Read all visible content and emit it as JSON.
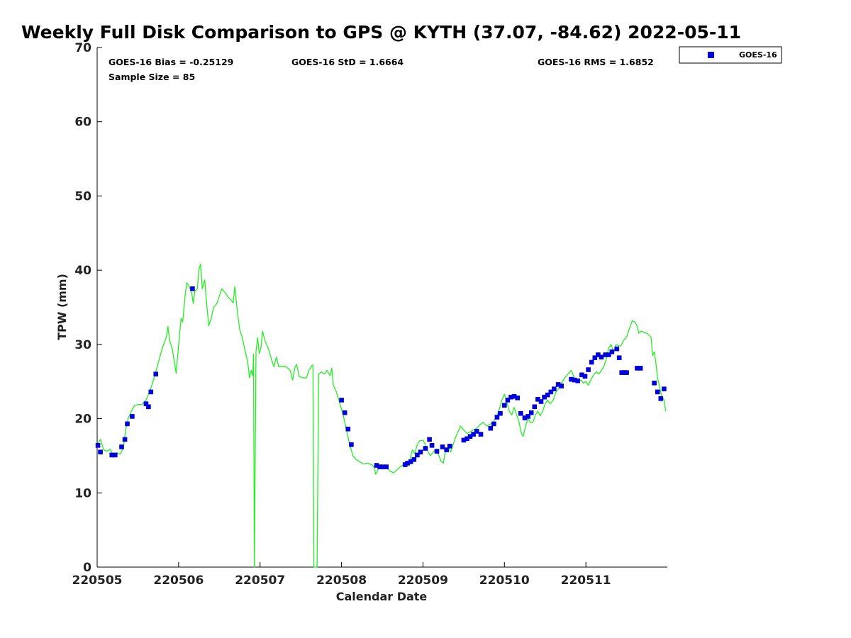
{
  "chart_data": {
    "type": "scatter",
    "title": "Weekly Full Disk Comparison to GPS @ KYTH (37.07, -84.62) 2022-05-11",
    "xlabel": "Calendar Date",
    "ylabel": "TPW (mm)",
    "x_ticks": [
      "220505",
      "220506",
      "220507",
      "220508",
      "220509",
      "220510",
      "220511"
    ],
    "y_ticks": [
      0,
      10,
      20,
      30,
      40,
      50,
      60,
      70
    ],
    "xlim_days": [
      0,
      7
    ],
    "ylim": [
      0,
      70
    ],
    "grid": false,
    "legend_position": "top-right",
    "stats": {
      "bias": "GOES-16 Bias = -0.25129",
      "std": "GOES-16 StD = 1.6664",
      "rms": "GOES-16 RMS = 1.6852",
      "sample_size": "Sample Size = 85"
    },
    "colors": {
      "goes": "#0000dd",
      "gps": "#22ee22"
    },
    "series": [
      {
        "name": "GOES-16",
        "kind": "markers",
        "color": "#0000dd",
        "points": [
          [
            0.01,
            16.4
          ],
          [
            0.04,
            15.5
          ],
          [
            0.18,
            15.1
          ],
          [
            0.22,
            15.1
          ],
          [
            0.3,
            16.2
          ],
          [
            0.34,
            17.2
          ],
          [
            0.37,
            19.3
          ],
          [
            0.43,
            20.3
          ],
          [
            0.6,
            22.0
          ],
          [
            0.63,
            21.6
          ],
          [
            0.66,
            23.6
          ],
          [
            0.72,
            26.0
          ],
          [
            1.17,
            37.5
          ],
          [
            3.0,
            22.5
          ],
          [
            3.04,
            20.8
          ],
          [
            3.08,
            18.6
          ],
          [
            3.12,
            16.5
          ],
          [
            3.43,
            13.7
          ],
          [
            3.47,
            13.5
          ],
          [
            3.51,
            13.5
          ],
          [
            3.55,
            13.5
          ],
          [
            3.78,
            13.8
          ],
          [
            3.81,
            14.0
          ],
          [
            3.85,
            14.2
          ],
          [
            3.89,
            14.5
          ],
          [
            3.93,
            15.1
          ],
          [
            3.97,
            15.5
          ],
          [
            4.03,
            16.0
          ],
          [
            4.08,
            17.2
          ],
          [
            4.11,
            16.4
          ],
          [
            4.17,
            15.6
          ],
          [
            4.24,
            16.2
          ],
          [
            4.29,
            15.8
          ],
          [
            4.33,
            16.3
          ],
          [
            4.5,
            17.1
          ],
          [
            4.54,
            17.3
          ],
          [
            4.58,
            17.6
          ],
          [
            4.62,
            17.9
          ],
          [
            4.66,
            18.3
          ],
          [
            4.71,
            17.9
          ],
          [
            4.83,
            18.7
          ],
          [
            4.87,
            19.3
          ],
          [
            4.91,
            20.2
          ],
          [
            4.95,
            20.7
          ],
          [
            5.0,
            21.8
          ],
          [
            5.04,
            22.5
          ],
          [
            5.08,
            22.9
          ],
          [
            5.12,
            23.0
          ],
          [
            5.16,
            22.8
          ],
          [
            5.2,
            20.7
          ],
          [
            5.25,
            20.1
          ],
          [
            5.29,
            20.3
          ],
          [
            5.33,
            20.8
          ],
          [
            5.37,
            21.6
          ],
          [
            5.41,
            22.6
          ],
          [
            5.45,
            22.3
          ],
          [
            5.49,
            22.9
          ],
          [
            5.53,
            23.2
          ],
          [
            5.57,
            23.6
          ],
          [
            5.61,
            24.0
          ],
          [
            5.66,
            24.6
          ],
          [
            5.7,
            24.4
          ],
          [
            5.82,
            25.3
          ],
          [
            5.86,
            25.2
          ],
          [
            5.9,
            25.1
          ],
          [
            5.95,
            25.9
          ],
          [
            5.99,
            25.7
          ],
          [
            6.03,
            26.6
          ],
          [
            6.07,
            27.6
          ],
          [
            6.11,
            28.2
          ],
          [
            6.15,
            28.6
          ],
          [
            6.19,
            28.3
          ],
          [
            6.24,
            28.6
          ],
          [
            6.28,
            28.6
          ],
          [
            6.32,
            29.0
          ],
          [
            6.38,
            29.4
          ],
          [
            6.41,
            28.2
          ],
          [
            6.44,
            26.2
          ],
          [
            6.47,
            26.2
          ],
          [
            6.5,
            26.2
          ],
          [
            6.63,
            26.8
          ],
          [
            6.67,
            26.8
          ],
          [
            6.84,
            24.8
          ],
          [
            6.88,
            23.6
          ],
          [
            6.92,
            22.7
          ],
          [
            6.96,
            24.0
          ]
        ]
      },
      {
        "name": "GPS",
        "kind": "line",
        "color": "#22ee22",
        "points": [
          [
            0.0,
            16.5
          ],
          [
            0.04,
            17.2
          ],
          [
            0.08,
            15.8
          ],
          [
            0.12,
            15.6
          ],
          [
            0.16,
            15.9
          ],
          [
            0.2,
            15.0
          ],
          [
            0.24,
            15.4
          ],
          [
            0.28,
            15.2
          ],
          [
            0.32,
            16.0
          ],
          [
            0.35,
            18.5
          ],
          [
            0.38,
            20.0
          ],
          [
            0.42,
            21.0
          ],
          [
            0.46,
            21.8
          ],
          [
            0.5,
            21.9
          ],
          [
            0.55,
            21.9
          ],
          [
            0.6,
            22.5
          ],
          [
            0.65,
            23.8
          ],
          [
            0.7,
            25.5
          ],
          [
            0.75,
            27.5
          ],
          [
            0.8,
            29.5
          ],
          [
            0.85,
            31.0
          ],
          [
            0.87,
            32.4
          ],
          [
            0.89,
            30.5
          ],
          [
            0.92,
            29.5
          ],
          [
            0.95,
            27.5
          ],
          [
            0.97,
            26.1
          ],
          [
            1.0,
            30.0
          ],
          [
            1.03,
            33.5
          ],
          [
            1.05,
            33.0
          ],
          [
            1.08,
            36.5
          ],
          [
            1.1,
            38.3
          ],
          [
            1.13,
            37.8
          ],
          [
            1.16,
            37.0
          ],
          [
            1.18,
            35.5
          ],
          [
            1.2,
            37.2
          ],
          [
            1.23,
            37.5
          ],
          [
            1.25,
            40.2
          ],
          [
            1.27,
            40.8
          ],
          [
            1.29,
            37.5
          ],
          [
            1.32,
            38.7
          ],
          [
            1.34,
            36.0
          ],
          [
            1.37,
            32.5
          ],
          [
            1.4,
            33.5
          ],
          [
            1.43,
            35.0
          ],
          [
            1.47,
            35.5
          ],
          [
            1.5,
            36.5
          ],
          [
            1.53,
            37.5
          ],
          [
            1.57,
            37.0
          ],
          [
            1.6,
            36.5
          ],
          [
            1.64,
            36.0
          ],
          [
            1.67,
            35.6
          ],
          [
            1.69,
            37.8
          ],
          [
            1.72,
            34.5
          ],
          [
            1.75,
            32.0
          ],
          [
            1.78,
            31.0
          ],
          [
            1.82,
            29.0
          ],
          [
            1.85,
            27.5
          ],
          [
            1.87,
            25.5
          ],
          [
            1.89,
            26.5
          ],
          [
            1.91,
            25.8
          ],
          [
            1.92,
            28.7
          ],
          [
            1.93,
            0.0
          ],
          [
            1.95,
            29.0
          ],
          [
            1.97,
            30.9
          ],
          [
            1.99,
            28.8
          ],
          [
            2.01,
            29.5
          ],
          [
            2.03,
            31.8
          ],
          [
            2.06,
            30.5
          ],
          [
            2.1,
            29.5
          ],
          [
            2.14,
            28.0
          ],
          [
            2.17,
            27.0
          ],
          [
            2.2,
            28.3
          ],
          [
            2.23,
            27.0
          ],
          [
            2.27,
            27.0
          ],
          [
            2.32,
            27.0
          ],
          [
            2.37,
            26.5
          ],
          [
            2.4,
            25.2
          ],
          [
            2.43,
            27.0
          ],
          [
            2.45,
            27.3
          ],
          [
            2.48,
            25.7
          ],
          [
            2.52,
            25.5
          ],
          [
            2.57,
            25.5
          ],
          [
            2.6,
            26.5
          ],
          [
            2.64,
            27.2
          ],
          [
            2.65,
            27.2
          ],
          [
            2.66,
            0.0
          ],
          [
            2.7,
            0.0
          ],
          [
            2.72,
            26.0
          ],
          [
            2.75,
            26.3
          ],
          [
            2.79,
            26.0
          ],
          [
            2.82,
            26.5
          ],
          [
            2.86,
            25.8
          ],
          [
            2.88,
            26.8
          ],
          [
            2.9,
            24.5
          ],
          [
            2.94,
            23.5
          ],
          [
            2.98,
            22.0
          ],
          [
            3.02,
            20.5
          ],
          [
            3.06,
            18.5
          ],
          [
            3.1,
            16.5
          ],
          [
            3.14,
            15.0
          ],
          [
            3.18,
            14.5
          ],
          [
            3.22,
            14.2
          ],
          [
            3.27,
            13.9
          ],
          [
            3.32,
            14.0
          ],
          [
            3.37,
            13.8
          ],
          [
            3.4,
            13.5
          ],
          [
            3.42,
            12.5
          ],
          [
            3.45,
            13.2
          ],
          [
            3.48,
            13.8
          ],
          [
            3.52,
            13.5
          ],
          [
            3.56,
            13.3
          ],
          [
            3.6,
            12.9
          ],
          [
            3.64,
            12.7
          ],
          [
            3.68,
            13.1
          ],
          [
            3.72,
            13.5
          ],
          [
            3.76,
            13.8
          ],
          [
            3.8,
            14.0
          ],
          [
            3.84,
            14.5
          ],
          [
            3.87,
            15.8
          ],
          [
            3.9,
            15.3
          ],
          [
            3.93,
            16.5
          ],
          [
            3.96,
            17.0
          ],
          [
            4.0,
            17.1
          ],
          [
            4.03,
            16.5
          ],
          [
            4.06,
            15.6
          ],
          [
            4.09,
            15.0
          ],
          [
            4.12,
            15.4
          ],
          [
            4.15,
            15.8
          ],
          [
            4.18,
            15.5
          ],
          [
            4.22,
            14.3
          ],
          [
            4.25,
            14.0
          ],
          [
            4.28,
            15.8
          ],
          [
            4.31,
            16.3
          ],
          [
            4.34,
            15.5
          ],
          [
            4.37,
            16.5
          ],
          [
            4.4,
            17.5
          ],
          [
            4.43,
            18.2
          ],
          [
            4.46,
            19.0
          ],
          [
            4.5,
            18.5
          ],
          [
            4.54,
            18.0
          ],
          [
            4.58,
            18.2
          ],
          [
            4.62,
            18.5
          ],
          [
            4.66,
            18.7
          ],
          [
            4.7,
            19.2
          ],
          [
            4.74,
            19.5
          ],
          [
            4.78,
            19.0
          ],
          [
            4.82,
            19.2
          ],
          [
            4.86,
            19.5
          ],
          [
            4.9,
            20.2
          ],
          [
            4.93,
            21.0
          ],
          [
            4.97,
            22.5
          ],
          [
            5.0,
            23.3
          ],
          [
            5.03,
            22.2
          ],
          [
            5.06,
            21.0
          ],
          [
            5.09,
            20.5
          ],
          [
            5.12,
            21.5
          ],
          [
            5.15,
            20.5
          ],
          [
            5.18,
            19.5
          ],
          [
            5.21,
            18.0
          ],
          [
            5.23,
            17.6
          ],
          [
            5.26,
            19.0
          ],
          [
            5.29,
            20.0
          ],
          [
            5.32,
            19.5
          ],
          [
            5.35,
            19.5
          ],
          [
            5.38,
            20.5
          ],
          [
            5.41,
            21.0
          ],
          [
            5.44,
            20.4
          ],
          [
            5.47,
            21.0
          ],
          [
            5.5,
            22.0
          ],
          [
            5.53,
            22.5
          ],
          [
            5.56,
            22.0
          ],
          [
            5.6,
            22.5
          ],
          [
            5.63,
            23.5
          ],
          [
            5.66,
            24.0
          ],
          [
            5.7,
            24.8
          ],
          [
            5.74,
            25.5
          ],
          [
            5.78,
            26.0
          ],
          [
            5.82,
            26.5
          ],
          [
            5.86,
            25.5
          ],
          [
            5.9,
            25.0
          ],
          [
            5.94,
            25.2
          ],
          [
            5.97,
            24.8
          ],
          [
            6.0,
            25.0
          ],
          [
            6.03,
            24.5
          ],
          [
            6.06,
            25.2
          ],
          [
            6.1,
            26.0
          ],
          [
            6.13,
            26.3
          ],
          [
            6.16,
            26.0
          ],
          [
            6.19,
            26.5
          ],
          [
            6.22,
            27.0
          ],
          [
            6.25,
            28.0
          ],
          [
            6.28,
            29.5
          ],
          [
            6.31,
            30.0
          ],
          [
            6.34,
            29.0
          ],
          [
            6.37,
            30.0
          ],
          [
            6.4,
            29.8
          ],
          [
            6.43,
            29.8
          ],
          [
            6.46,
            30.5
          ],
          [
            6.5,
            31.0
          ],
          [
            6.53,
            32.0
          ],
          [
            6.57,
            33.2
          ],
          [
            6.6,
            33.0
          ],
          [
            6.63,
            32.5
          ],
          [
            6.65,
            31.5
          ],
          [
            6.68,
            31.8
          ],
          [
            6.72,
            31.6
          ],
          [
            6.76,
            31.4
          ],
          [
            6.8,
            31.0
          ],
          [
            6.82,
            28.5
          ],
          [
            6.84,
            29.0
          ],
          [
            6.86,
            27.5
          ],
          [
            6.88,
            25.5
          ],
          [
            6.9,
            24.5
          ],
          [
            6.93,
            23.0
          ],
          [
            6.96,
            22.5
          ],
          [
            6.98,
            21.0
          ]
        ]
      }
    ]
  }
}
